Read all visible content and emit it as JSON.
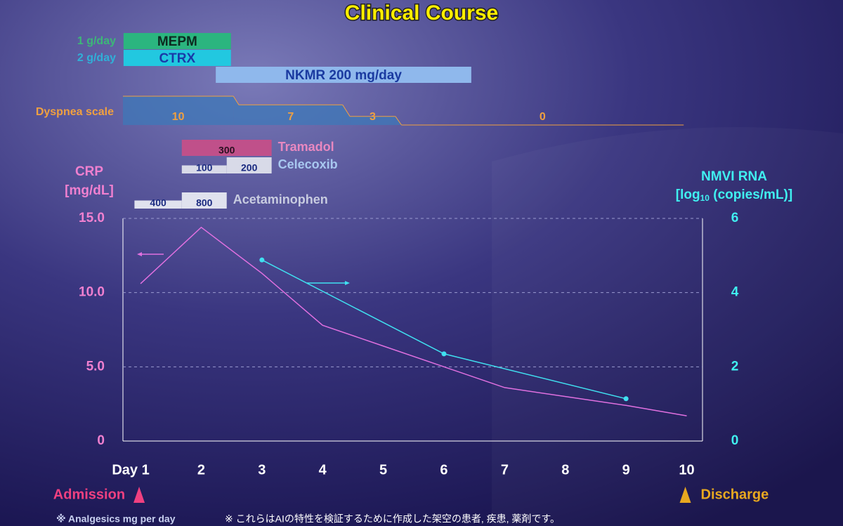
{
  "chart_data": {
    "type": "line",
    "title": "Clinical Course",
    "ylabel": [
      "CRP",
      "[mg/dL]"
    ],
    "y2label": {
      "line1": "NMVI RNA",
      "pre": "[log",
      "sub": "10",
      "post": " (copies/mL)]"
    },
    "xlim": [
      0.71,
      10.26
    ],
    "xticks": [
      {
        "value": 1,
        "label": "Day 1"
      },
      2,
      3,
      4,
      5,
      6,
      7,
      8,
      9,
      10
    ],
    "ylim": [
      0,
      15
    ],
    "yticks": [
      0,
      {
        "value": 5,
        "label": "5.0"
      },
      {
        "value": 10,
        "label": "10.0"
      },
      {
        "value": 15,
        "label": "15.0"
      }
    ],
    "y2lim": [
      0,
      6
    ],
    "y2ticks": [
      0,
      2,
      4,
      6
    ],
    "grid": true,
    "series": [
      {
        "color": "#e070e0",
        "x": [
          1,
          2,
          3,
          4,
          5,
          6,
          7,
          8,
          9,
          10
        ],
        "values": [
          10.6,
          14.4,
          11.3,
          7.8,
          6.4,
          5.0,
          3.6,
          3.0,
          2.4,
          1.7
        ]
      },
      {
        "color": "#40e0f0",
        "axis": "y2",
        "markers": true,
        "x": [
          3,
          6,
          9
        ],
        "values": [
          4.88,
          2.35,
          1.14
        ]
      }
    ],
    "treatments": [
      {
        "name": "MEPM",
        "dose": "1 g/day",
        "color": "#2bb57f",
        "dose_color": "#3cb878",
        "text_color": "#0d2a20",
        "start": 0.72,
        "end": 2.49
      },
      {
        "name": "CTRX",
        "dose": "2 g/day",
        "color": "#22c8e0",
        "dose_color": "#30b0d8",
        "text_color": "#1a3aa8",
        "start": 0.72,
        "end": 2.49
      },
      {
        "name": "NKMR 200 mg/day",
        "color": "#8fb8ec",
        "text_color": "#1a3aa0",
        "start": 2.24,
        "end": 6.45
      }
    ],
    "dyspnea": {
      "label": "Dyspnea scale",
      "color": "#f0a040",
      "fill": "#3e78b8",
      "segments": [
        {
          "value": 10,
          "start": 0.72,
          "end": 2.53
        },
        {
          "value": 7,
          "start": 2.62,
          "end": 4.33
        },
        {
          "value": 3,
          "start": 4.45,
          "end": 5.2
        },
        {
          "value": 0,
          "start": 5.3,
          "end": 9.95
        }
      ]
    },
    "analgesics": {
      "note": "※ Analgesics mg per day",
      "drugs": [
        {
          "name": "Tramadol",
          "color": "#c0508a",
          "label_color": "#e888c0",
          "doses": [
            {
              "value": 300,
              "start": 1.68,
              "end": 3.16
            }
          ]
        },
        {
          "name": "Celecoxib",
          "color": "#d8dae8",
          "label_color": "#a8c8f0",
          "doses": [
            {
              "value": 100,
              "start": 1.68,
              "end": 2.42
            },
            {
              "value": 200,
              "start": 2.42,
              "end": 3.16
            }
          ]
        },
        {
          "name": "Acetaminophen",
          "color": "#e0e2ee",
          "label_color": "#c8cce0",
          "doses": [
            {
              "value": 400,
              "start": 0.9,
              "end": 1.68
            },
            {
              "value": 800,
              "start": 1.68,
              "end": 2.42
            }
          ]
        }
      ]
    },
    "annotations": [
      {
        "text": "Admission",
        "x": 1,
        "color": "#f04080",
        "side": "left"
      },
      {
        "text": "Discharge",
        "x": 10,
        "color": "#e8a820",
        "side": "right"
      }
    ],
    "footnote": "※ これらはAIの特性を検証するために作成した架空の患者, 疾患, 薬剤です。"
  }
}
